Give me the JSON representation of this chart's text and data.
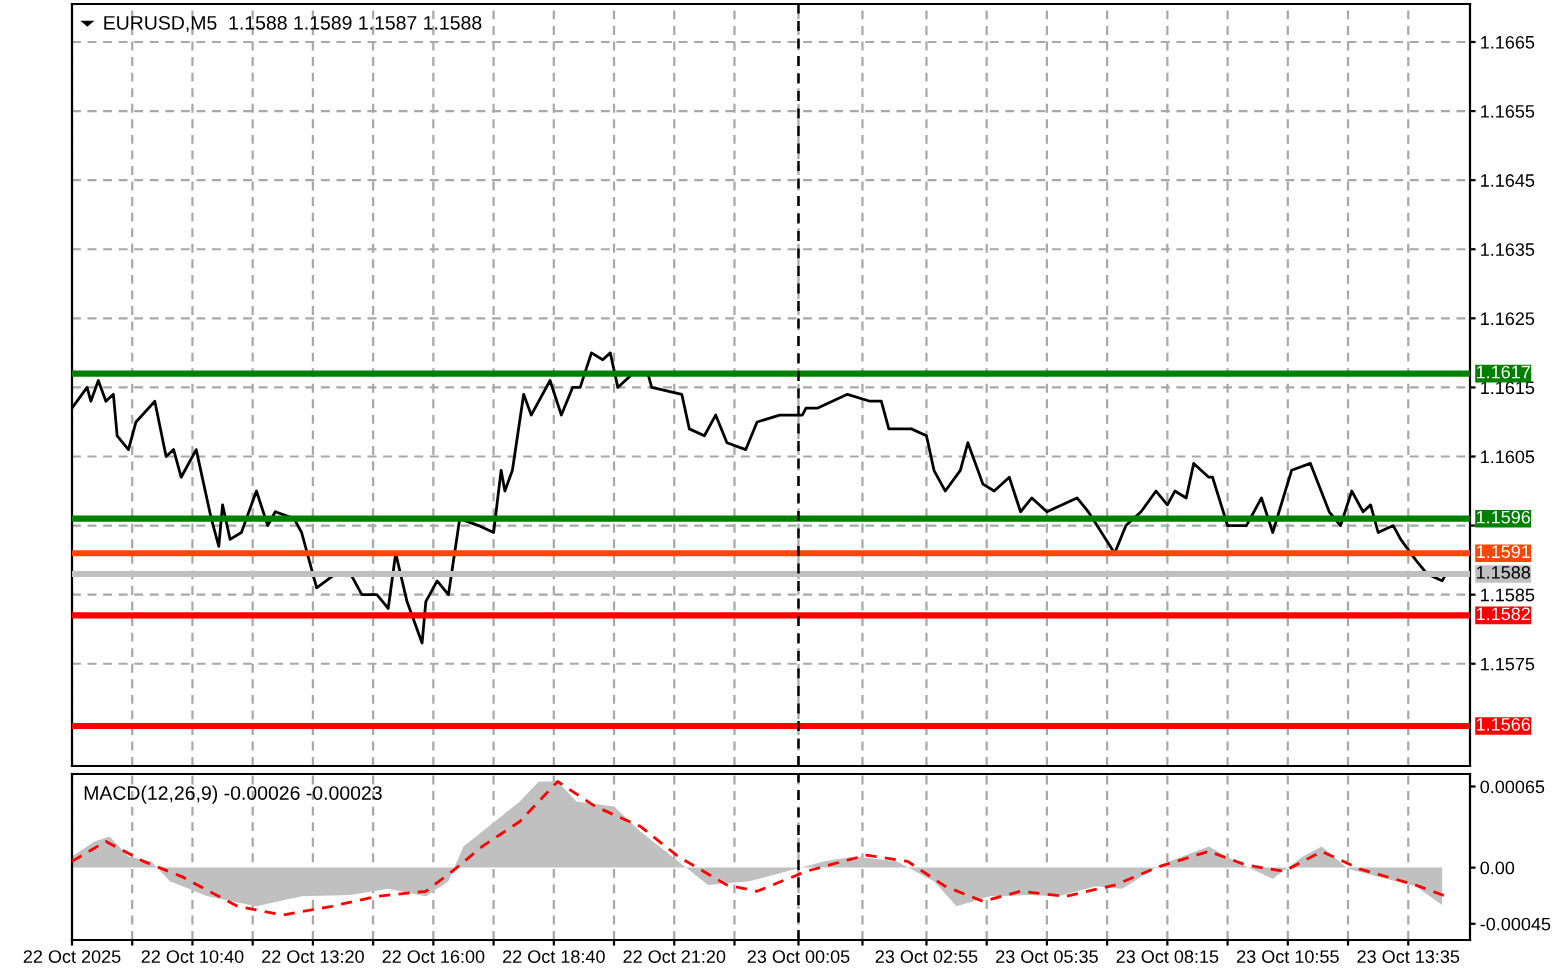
{
  "chart_data": [
    {
      "type": "line",
      "title": "EURUSD,M5  1.1588 1.1589 1.1587 1.1588",
      "grid": true,
      "tick_labels": "y",
      "legend": false,
      "xlim": [
        "2025-10-22T08:00",
        "2025-10-23T14:57"
      ],
      "ylim": [
        1.15602,
        1.16705
      ],
      "xticks": [
        {
          "value": "2025-10-22T08:00",
          "label": null
        },
        {
          "value": "2025-10-22T09:20",
          "label": null
        },
        {
          "value": "2025-10-22T10:40",
          "label": null
        },
        {
          "value": "2025-10-22T12:00",
          "label": null
        },
        {
          "value": "2025-10-22T13:20",
          "label": null
        },
        {
          "value": "2025-10-22T14:40",
          "label": null
        },
        {
          "value": "2025-10-22T16:00",
          "label": null
        },
        {
          "value": "2025-10-22T17:20",
          "label": null
        },
        {
          "value": "2025-10-22T18:40",
          "label": null
        },
        {
          "value": "2025-10-22T20:00",
          "label": null
        },
        {
          "value": "2025-10-22T21:20",
          "label": null
        },
        {
          "value": "2025-10-22T22:40",
          "label": null
        },
        {
          "value": "2025-10-23T00:05",
          "label": null
        },
        {
          "value": "2025-10-23T01:30",
          "label": null
        },
        {
          "value": "2025-10-23T02:55",
          "label": null
        },
        {
          "value": "2025-10-23T04:15",
          "label": null
        },
        {
          "value": "2025-10-23T05:35",
          "label": null
        },
        {
          "value": "2025-10-23T06:55",
          "label": null
        },
        {
          "value": "2025-10-23T08:15",
          "label": null
        },
        {
          "value": "2025-10-23T09:35",
          "label": null
        },
        {
          "value": "2025-10-23T10:55",
          "label": null
        },
        {
          "value": "2025-10-23T12:15",
          "label": null
        },
        {
          "value": "2025-10-23T13:35",
          "label": null
        }
      ],
      "yticks": [
        1.1575,
        1.1585,
        {
          "value": 1.1595,
          "label": null
        },
        1.1605,
        1.1615,
        1.1625,
        1.1635,
        1.1645,
        1.1655,
        1.1665
      ],
      "ref_lines": [
        {
          "axis": "y",
          "value": 1.1617,
          "label": "1.1617",
          "color": "#008000"
        },
        {
          "axis": "y",
          "value": 1.1596,
          "label": "1.1596",
          "color": "#008000"
        },
        {
          "axis": "y",
          "value": 1.1591,
          "label": "1.1591",
          "color": "#ff4500"
        },
        {
          "axis": "y",
          "value": 1.1588,
          "label": "1.1588",
          "color": "#c0c0c0"
        },
        {
          "axis": "y",
          "value": 1.1582,
          "label": "1.1582",
          "color": "#ff0000"
        },
        {
          "axis": "y",
          "value": 1.1566,
          "label": "1.1566",
          "color": "#ff0000"
        },
        {
          "axis": "x",
          "value": "2025-10-23T00:05",
          "label": null,
          "color": "#000000",
          "line_style": "dashed"
        }
      ],
      "series": [
        {
          "color": "#000000",
          "x": [
            "2025-10-22T08:00",
            "2025-10-22T08:20",
            "2025-10-22T08:25",
            "2025-10-22T08:35",
            "2025-10-22T08:45",
            "2025-10-22T08:55",
            "2025-10-22T09:00",
            "2025-10-22T09:15",
            "2025-10-22T09:25",
            "2025-10-22T09:50",
            "2025-10-22T10:05",
            "2025-10-22T10:15",
            "2025-10-22T10:25",
            "2025-10-22T10:45",
            "2025-10-22T11:05",
            "2025-10-22T11:15",
            "2025-10-22T11:20",
            "2025-10-22T11:30",
            "2025-10-22T11:45",
            "2025-10-22T12:05",
            "2025-10-22T12:20",
            "2025-10-22T12:30",
            "2025-10-22T12:55",
            "2025-10-22T13:05",
            "2025-10-22T13:25",
            "2025-10-22T13:50",
            "2025-10-22T14:10",
            "2025-10-22T14:25",
            "2025-10-22T14:45",
            "2025-10-22T15:00",
            "2025-10-22T15:10",
            "2025-10-22T15:25",
            "2025-10-22T15:45",
            "2025-10-22T15:50",
            "2025-10-22T16:05",
            "2025-10-22T16:20",
            "2025-10-22T16:35",
            "2025-10-22T17:00",
            "2025-10-22T17:20",
            "2025-10-22T17:30",
            "2025-10-22T17:35",
            "2025-10-22T17:45",
            "2025-10-22T18:00",
            "2025-10-22T18:10",
            "2025-10-22T18:35",
            "2025-10-22T18:50",
            "2025-10-22T19:05",
            "2025-10-22T19:15",
            "2025-10-22T19:30",
            "2025-10-22T19:45",
            "2025-10-22T19:55",
            "2025-10-22T20:05",
            "2025-10-22T20:25",
            "2025-10-22T20:45",
            "2025-10-22T20:50",
            "2025-10-22T21:30",
            "2025-10-22T21:40",
            "2025-10-22T22:00",
            "2025-10-22T22:15",
            "2025-10-22T22:30",
            "2025-10-22T22:55",
            "2025-10-22T23:10",
            "2025-10-22T23:40",
            "2025-10-23T00:10",
            "2025-10-23T00:15",
            "2025-10-23T00:30",
            "2025-10-23T01:10",
            "2025-10-23T01:40",
            "2025-10-23T01:55",
            "2025-10-23T02:05",
            "2025-10-23T02:35",
            "2025-10-23T02:55",
            "2025-10-23T03:05",
            "2025-10-23T03:20",
            "2025-10-23T03:40",
            "2025-10-23T03:50",
            "2025-10-23T04:10",
            "2025-10-23T04:25",
            "2025-10-23T04:45",
            "2025-10-23T05:00",
            "2025-10-23T05:15",
            "2025-10-23T05:35",
            "2025-10-23T06:15",
            "2025-10-23T06:30",
            "2025-10-23T07:05",
            "2025-10-23T07:20",
            "2025-10-23T07:40",
            "2025-10-23T08:00",
            "2025-10-23T08:15",
            "2025-10-23T08:25",
            "2025-10-23T08:40",
            "2025-10-23T08:50",
            "2025-10-23T09:10",
            "2025-10-23T09:15",
            "2025-10-23T09:35",
            "2025-10-23T10:00",
            "2025-10-23T10:20",
            "2025-10-23T10:35",
            "2025-10-23T11:00",
            "2025-10-23T11:25",
            "2025-10-23T11:50",
            "2025-10-23T12:05",
            "2025-10-23T12:20",
            "2025-10-23T12:35",
            "2025-10-23T12:45",
            "2025-10-23T12:55",
            "2025-10-23T13:15",
            "2025-10-23T13:25",
            "2025-10-23T13:45",
            "2025-10-23T14:00",
            "2025-10-23T14:20",
            "2025-10-23T14:25"
          ],
          "values": [
            1.1612,
            1.1615,
            1.1613,
            1.1616,
            1.1613,
            1.1614,
            1.1608,
            1.1606,
            1.161,
            1.1613,
            1.1605,
            1.1606,
            1.1602,
            1.1606,
            1.1596,
            1.1592,
            1.1598,
            1.1593,
            1.1594,
            1.16,
            1.1595,
            1.1597,
            1.1596,
            1.1594,
            1.1586,
            1.1588,
            1.1588,
            1.1585,
            1.1585,
            1.1583,
            1.1591,
            1.1584,
            1.1578,
            1.1584,
            1.1587,
            1.1585,
            1.1596,
            1.1595,
            1.1594,
            1.1603,
            1.16,
            1.1603,
            1.1614,
            1.1611,
            1.1616,
            1.1611,
            1.1615,
            1.1615,
            1.162,
            1.1619,
            1.162,
            1.1615,
            1.1617,
            1.1617,
            1.1615,
            1.1614,
            1.1609,
            1.1608,
            1.1611,
            1.1607,
            1.1606,
            1.161,
            1.1611,
            1.1611,
            1.1612,
            1.1612,
            1.1614,
            1.1613,
            1.1613,
            1.1609,
            1.1609,
            1.1608,
            1.1603,
            1.16,
            1.1603,
            1.1607,
            1.1601,
            1.16,
            1.1602,
            1.1597,
            1.1599,
            1.1597,
            1.1599,
            1.1597,
            1.1591,
            1.1595,
            1.1597,
            1.16,
            1.1598,
            1.16,
            1.1599,
            1.1604,
            1.1602,
            1.1602,
            1.1595,
            1.1595,
            1.1599,
            1.1594,
            1.1603,
            1.1604,
            1.1597,
            1.1595,
            1.16,
            1.1597,
            1.1598,
            1.1594,
            1.1595,
            1.1593,
            1.159,
            1.1588,
            1.1587,
            1.1588
          ]
        }
      ]
    },
    {
      "type": "area",
      "title": "MACD(12,26,9) -0.00026 -0.00023",
      "grid": "x",
      "legend": false,
      "xlim": [
        "2025-10-22T08:00",
        "2025-10-23T14:57"
      ],
      "ylim": [
        -0.00058,
        0.00075
      ],
      "xticks": [
        {
          "value": "2025-10-22T08:00",
          "label": "22 Oct 2025"
        },
        {
          "value": "2025-10-22T09:20",
          "label": null
        },
        {
          "value": "2025-10-22T10:40",
          "label": "22 Oct 10:40"
        },
        {
          "value": "2025-10-22T12:00",
          "label": null
        },
        {
          "value": "2025-10-22T13:20",
          "label": "22 Oct 13:20"
        },
        {
          "value": "2025-10-22T14:40",
          "label": null
        },
        {
          "value": "2025-10-22T16:00",
          "label": "22 Oct 16:00"
        },
        {
          "value": "2025-10-22T17:20",
          "label": null
        },
        {
          "value": "2025-10-22T18:40",
          "label": "22 Oct 18:40"
        },
        {
          "value": "2025-10-22T20:00",
          "label": null
        },
        {
          "value": "2025-10-22T21:20",
          "label": "22 Oct 21:20"
        },
        {
          "value": "2025-10-22T22:40",
          "label": null
        },
        {
          "value": "2025-10-23T00:05",
          "label": "23 Oct 00:05"
        },
        {
          "value": "2025-10-23T01:30",
          "label": null
        },
        {
          "value": "2025-10-23T02:55",
          "label": "23 Oct 02:55"
        },
        {
          "value": "2025-10-23T04:15",
          "label": null
        },
        {
          "value": "2025-10-23T05:35",
          "label": "23 Oct 05:35"
        },
        {
          "value": "2025-10-23T06:55",
          "label": null
        },
        {
          "value": "2025-10-23T08:15",
          "label": "23 Oct 08:15"
        },
        {
          "value": "2025-10-23T09:35",
          "label": null
        },
        {
          "value": "2025-10-23T10:55",
          "label": "23 Oct 10:55"
        },
        {
          "value": "2025-10-23T12:15",
          "label": null
        },
        {
          "value": "2025-10-23T13:35",
          "label": "23 Oct 13:35"
        }
      ],
      "yticks": [
        {
          "value": -0.00045,
          "label": "-0.00045"
        },
        {
          "value": 0,
          "label": "0.00"
        },
        {
          "value": 0.00065,
          "label": "0.00065"
        }
      ],
      "ref_lines": [
        {
          "axis": "x",
          "value": "2025-10-23T00:05",
          "label": null,
          "color": "#000000",
          "line_style": "dashed"
        }
      ],
      "series": [
        {
          "color": "#c0c0c0",
          "x": [
            "2025-10-22T08:00",
            "2025-10-22T08:30",
            "2025-10-22T08:50",
            "2025-10-22T09:15",
            "2025-10-22T09:45",
            "2025-10-22T10:10",
            "2025-10-22T11:00",
            "2025-10-22T12:05",
            "2025-10-22T13:05",
            "2025-10-22T14:10",
            "2025-10-22T15:00",
            "2025-10-22T15:50",
            "2025-10-22T16:20",
            "2025-10-22T16:40",
            "2025-10-22T17:05",
            "2025-10-22T17:30",
            "2025-10-22T17:55",
            "2025-10-22T18:20",
            "2025-10-22T18:45",
            "2025-10-22T19:10",
            "2025-10-22T20:00",
            "2025-10-22T20:35",
            "2025-10-22T21:25",
            "2025-10-22T22:05",
            "2025-10-22T23:00",
            "2025-10-22T23:50",
            "2025-10-23T00:40",
            "2025-10-23T01:20",
            "2025-10-23T02:15",
            "2025-10-23T03:05",
            "2025-10-23T03:35",
            "2025-10-23T04:20",
            "2025-10-23T05:10",
            "2025-10-23T05:50",
            "2025-10-23T06:40",
            "2025-10-23T07:15",
            "2025-10-23T08:05",
            "2025-10-23T08:35",
            "2025-10-23T09:10",
            "2025-10-23T09:45",
            "2025-10-23T10:35",
            "2025-10-23T11:15",
            "2025-10-23T11:40",
            "2025-10-23T12:15",
            "2025-10-23T13:05",
            "2025-10-23T13:45",
            "2025-10-23T14:20"
          ],
          "values": [
            9e-05,
            0.00021,
            0.00025,
            9e-05,
            5e-05,
            -0.00011,
            -0.00023,
            -0.00031,
            -0.00023,
            -0.00022,
            -0.00017,
            -0.00023,
            -0.00011,
            0.00017,
            0.00029,
            0.00041,
            0.00053,
            0.00069,
            0.00069,
            0.00053,
            0.00049,
            0.00029,
            5e-05,
            -0.00014,
            -0.00011,
            -3e-05,
            5e-05,
            9e-05,
            5e-05,
            -0.00011,
            -0.00031,
            -0.00023,
            -0.00022,
            -0.00023,
            -0.00015,
            -0.00017,
            2e-05,
            9e-05,
            0.00017,
            5e-05,
            -9e-05,
            9e-05,
            0.00017,
            -1e-05,
            -9e-05,
            -0.00015,
            -0.0003
          ]
        },
        {
          "type": "line",
          "color": "#ff0000",
          "line_style": "dashed",
          "x": [
            "2025-10-22T08:00",
            "2025-10-22T08:45",
            "2025-10-22T09:35",
            "2025-10-22T10:25",
            "2025-10-22T11:40",
            "2025-10-22T12:40",
            "2025-10-22T13:45",
            "2025-10-22T14:45",
            "2025-10-22T15:50",
            "2025-10-22T16:25",
            "2025-10-22T17:05",
            "2025-10-22T17:55",
            "2025-10-22T18:45",
            "2025-10-22T19:35",
            "2025-10-22T20:35",
            "2025-10-22T21:25",
            "2025-10-22T22:30",
            "2025-10-22T23:10",
            "2025-10-23T00:15",
            "2025-10-23T01:35",
            "2025-10-23T02:30",
            "2025-10-23T03:20",
            "2025-10-23T04:10",
            "2025-10-23T05:00",
            "2025-10-23T06:00",
            "2025-10-23T07:05",
            "2025-10-23T08:05",
            "2025-10-23T09:10",
            "2025-10-23T10:00",
            "2025-10-23T10:50",
            "2025-10-23T11:40",
            "2025-10-23T12:30",
            "2025-10-23T13:45",
            "2025-10-23T14:25"
          ],
          "values": [
            5e-05,
            0.00021,
            5e-05,
            -7e-05,
            -0.00031,
            -0.00038,
            -0.00031,
            -0.00023,
            -0.00019,
            -3e-05,
            0.00017,
            0.00037,
            0.00069,
            0.00049,
            0.00033,
            9e-05,
            -0.00014,
            -0.00019,
            -3e-05,
            0.0001,
            5e-05,
            -0.00015,
            -0.00027,
            -0.00019,
            -0.00023,
            -0.00014,
            1e-05,
            0.00013,
            2e-05,
            -3e-05,
            0.00013,
            -1e-05,
            -0.00014,
            -0.00023
          ]
        }
      ]
    }
  ]
}
